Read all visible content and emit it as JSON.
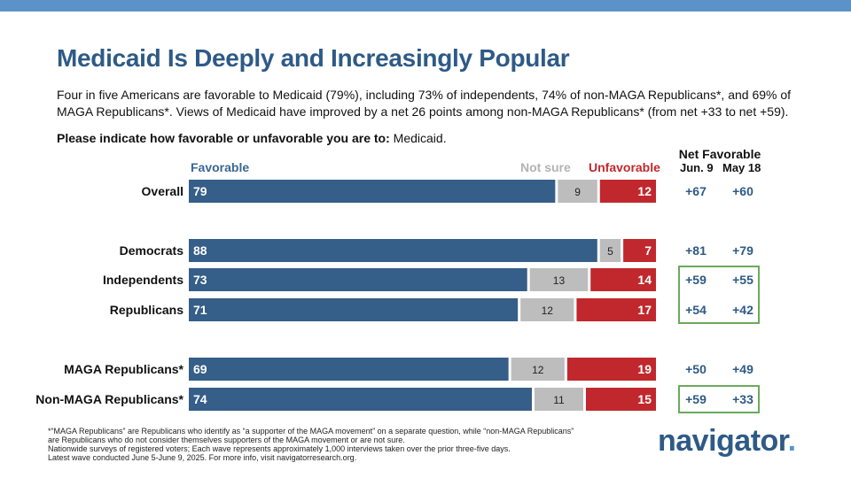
{
  "header": {
    "title": "Medicaid Is Deeply and Increasingly Popular",
    "subtitle": "Four in five Americans are favorable to Medicaid (79%), including 73% of independents, 74% of non-MAGA Republicans*, and 69% of MAGA Republicans*. Views of Medicaid have improved by a net 26 points among non-MAGA Republicans* (from net +33 to net +59).",
    "question_bold": "Please indicate how favorable or unfavorable you are to:",
    "question_rest": " Medicaid."
  },
  "colors": {
    "favorable": "#355e88",
    "not_sure": "#bdbdbd",
    "unfavorable": "#c0282d",
    "title": "#2e5a86",
    "highlight_box": "#6aaa5c"
  },
  "chart_data": {
    "type": "bar",
    "stacked": true,
    "orientation": "horizontal",
    "categories": [
      "Overall",
      "Democrats",
      "Independents",
      "Republicans",
      "MAGA Republicans*",
      "Non-MAGA Republicans*"
    ],
    "series": [
      {
        "name": "Favorable",
        "values": [
          79,
          88,
          73,
          71,
          69,
          74
        ]
      },
      {
        "name": "Not sure",
        "values": [
          9,
          5,
          13,
          12,
          12,
          11
        ]
      },
      {
        "name": "Unfavorable",
        "values": [
          12,
          7,
          14,
          17,
          19,
          15
        ]
      }
    ],
    "net_favorable": {
      "title": "Net Favorable",
      "columns": [
        "Jun. 9",
        "May 18"
      ],
      "jun9": [
        "+67",
        "+81",
        "+59",
        "+54",
        "+50",
        "+59"
      ],
      "may18": [
        "+60",
        "+79",
        "+55",
        "+42",
        "+49",
        "+33"
      ],
      "highlighted_rows": [
        [
          2,
          3
        ],
        [
          5,
          5
        ]
      ]
    },
    "xlim": [
      0,
      100
    ]
  },
  "footnote": {
    "line1": "*“MAGA Republicans” are Republicans who identify as “a supporter of the MAGA movement” on a separate question, while “non-MAGA Republicans” are Republicans who do not consider themselves supporters of the MAGA movement or are not sure.",
    "line2": "Nationwide surveys of registered voters; Each wave represents approximately 1,000 interviews taken over the prior three-five days.",
    "line3": "Latest wave conducted June 5-June 9, 2025. For more info, visit navigatorresearch.org."
  },
  "logo": {
    "text": "navigator",
    "dot": "."
  }
}
